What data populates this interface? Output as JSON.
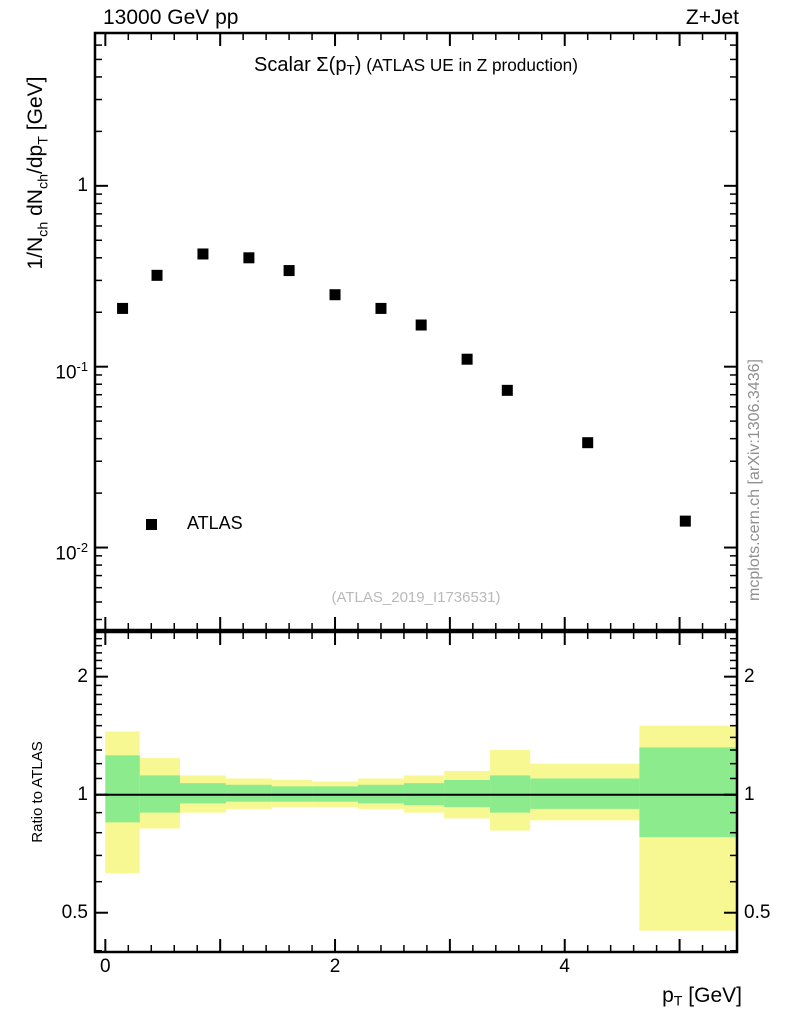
{
  "header": {
    "left": "13000 GeV pp",
    "right": "Z+Jet"
  },
  "title": {
    "segments": [
      {
        "t": "Scalar Σ(p"
      },
      {
        "t": "T",
        "sub": true
      },
      {
        "t": ")"
      },
      {
        "t": " (ATLAS UE in Z production)",
        "small": true
      }
    ]
  },
  "axis_labels": {
    "y_main_segments": [
      {
        "t": "1/N"
      },
      {
        "t": "ch",
        "sub": true
      },
      {
        "t": " dN"
      },
      {
        "t": "ch",
        "sub": true
      },
      {
        "t": "/dp"
      },
      {
        "t": "T",
        "sub": true
      },
      {
        "t": " [GeV]"
      }
    ],
    "x_segments": [
      {
        "t": "p"
      },
      {
        "t": "T",
        "sub": true
      },
      {
        "t": " [GeV]"
      }
    ],
    "ratio_y": "Ratio to ATLAS"
  },
  "legend": {
    "label": "ATLAS",
    "marker": "filled-square",
    "color": "#000000"
  },
  "watermark": "(ATLAS_2019_I1736531)",
  "side_note": "mcplots.cern.ch [arXiv:1306.3436]",
  "colors": {
    "band_outer": "#f8f893",
    "band_inner": "#8ceb8c",
    "marker": "#000000",
    "frame": "#000000",
    "muted_text": "#b9b9b9",
    "side_text": "#8f8f8f"
  },
  "chart_data": {
    "type": "scatter",
    "title": "Scalar Σ(pT) (ATLAS UE in Z production)",
    "xlabel": "pT [GeV]",
    "main_panel": {
      "ylabel": "1/Nch dNch/dpT [GeV]",
      "xscale": "linear",
      "yscale": "log",
      "xlim": [
        -0.09,
        5.5
      ],
      "ylim": [
        0.0035,
        7.0
      ],
      "grid": false,
      "x_major_ticks": [
        0,
        1,
        2,
        3,
        4,
        5
      ],
      "x_minor_step": 0.2,
      "x_tick_labels": [
        {
          "v": 0,
          "t": "0"
        },
        {
          "v": 2,
          "t": "2"
        },
        {
          "v": 4,
          "t": "4"
        }
      ],
      "y_tick_labels": [
        {
          "v": 1,
          "t": "1"
        },
        {
          "v": 0.1,
          "t": "10",
          "e": "-1"
        },
        {
          "v": 0.01,
          "t": "10",
          "e": "-2"
        }
      ],
      "series": [
        {
          "name": "ATLAS",
          "marker": "filled-square",
          "color": "#000000",
          "x": [
            0.15,
            0.45,
            0.85,
            1.25,
            1.6,
            2.0,
            2.4,
            2.75,
            3.15,
            3.5,
            4.2,
            5.05
          ],
          "y": [
            0.21,
            0.32,
            0.42,
            0.4,
            0.34,
            0.25,
            0.21,
            0.17,
            0.11,
            0.074,
            0.038,
            0.014
          ]
        }
      ],
      "legend_position": "lower-left"
    },
    "ratio_panel": {
      "ylabel": "Ratio to ATLAS",
      "yscale": "log",
      "ylim": [
        0.397,
        2.6
      ],
      "reference_line": 1.0,
      "y_minor_step": 0.1,
      "y_tick_labels": [
        {
          "v": 2,
          "t": "2"
        },
        {
          "v": 1,
          "t": "1"
        },
        {
          "v": 0.5,
          "t": "0.5"
        }
      ],
      "bands": [
        {
          "x1": 0.0,
          "x2": 0.3,
          "outer": [
            0.63,
            1.45
          ],
          "inner": [
            0.85,
            1.26
          ]
        },
        {
          "x1": 0.3,
          "x2": 0.65,
          "outer": [
            0.82,
            1.24
          ],
          "inner": [
            0.9,
            1.12
          ]
        },
        {
          "x1": 0.65,
          "x2": 1.05,
          "outer": [
            0.9,
            1.12
          ],
          "inner": [
            0.95,
            1.07
          ]
        },
        {
          "x1": 1.05,
          "x2": 1.45,
          "outer": [
            0.92,
            1.1
          ],
          "inner": [
            0.96,
            1.06
          ]
        },
        {
          "x1": 1.45,
          "x2": 1.8,
          "outer": [
            0.93,
            1.09
          ],
          "inner": [
            0.96,
            1.05
          ]
        },
        {
          "x1": 1.8,
          "x2": 2.2,
          "outer": [
            0.93,
            1.08
          ],
          "inner": [
            0.96,
            1.05
          ]
        },
        {
          "x1": 2.2,
          "x2": 2.6,
          "outer": [
            0.92,
            1.1
          ],
          "inner": [
            0.95,
            1.06
          ]
        },
        {
          "x1": 2.6,
          "x2": 2.95,
          "outer": [
            0.9,
            1.12
          ],
          "inner": [
            0.94,
            1.07
          ]
        },
        {
          "x1": 2.95,
          "x2": 3.35,
          "outer": [
            0.87,
            1.15
          ],
          "inner": [
            0.93,
            1.09
          ]
        },
        {
          "x1": 3.35,
          "x2": 3.7,
          "outer": [
            0.81,
            1.3
          ],
          "inner": [
            0.9,
            1.12
          ]
        },
        {
          "x1": 3.7,
          "x2": 4.65,
          "outer": [
            0.86,
            1.2
          ],
          "inner": [
            0.92,
            1.1
          ]
        },
        {
          "x1": 4.65,
          "x2": 5.5,
          "outer": [
            0.45,
            1.5
          ],
          "inner": [
            0.78,
            1.32
          ]
        }
      ]
    }
  }
}
